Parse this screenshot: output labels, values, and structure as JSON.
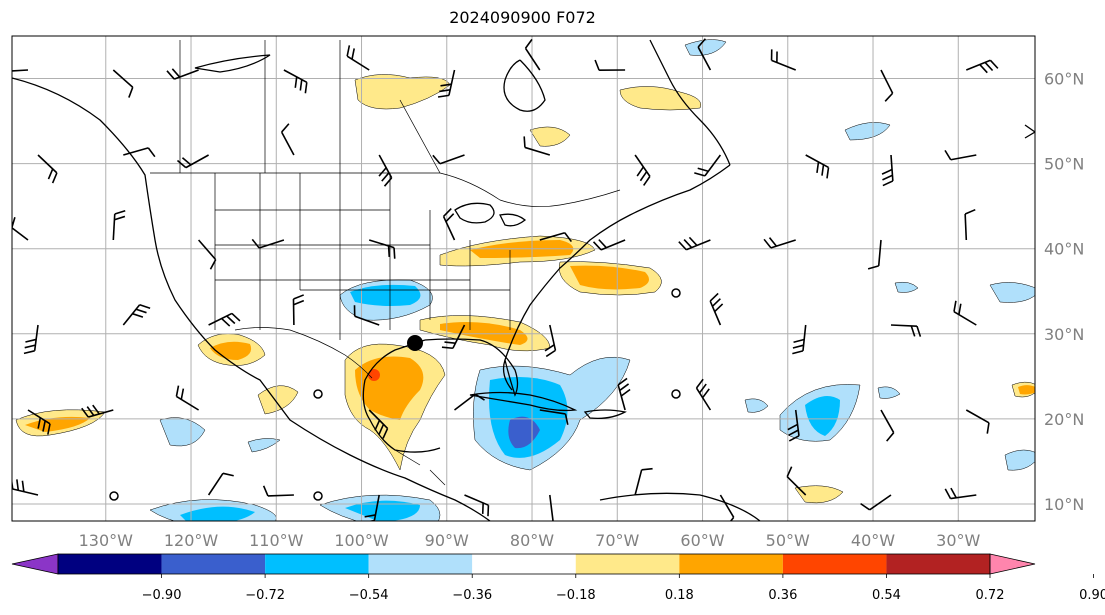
{
  "title": "2024090900 F072",
  "map": {
    "lon_labels": [
      "130°W",
      "120°W",
      "110°W",
      "100°W",
      "90°W",
      "80°W",
      "70°W",
      "60°W",
      "50°W",
      "40°W",
      "30°W"
    ],
    "lat_labels": [
      "60°N",
      "50°N",
      "40°N",
      "30°N",
      "20°N",
      "10°N"
    ],
    "lon_range": [
      -141,
      -21
    ],
    "lat_range": [
      8,
      65
    ],
    "grid": true,
    "features": [
      "coastlines",
      "country-borders",
      "state-borders",
      "wind-barbs",
      "filled-contours",
      "storm-marker"
    ]
  },
  "colorbar": {
    "ticks": [
      "−0.90",
      "−0.72",
      "−0.54",
      "−0.36",
      "−0.18",
      "0.18",
      "0.36",
      "0.54",
      "0.72",
      "0.90"
    ],
    "colors": [
      "#8b35c7",
      "#000080",
      "#3a5fcd",
      "#00bfff",
      "#b0e0fb",
      "#ffffff",
      "#ffe98a",
      "#ffa500",
      "#ff4500",
      "#b22222",
      "#ff85ad"
    ],
    "extend": "both"
  }
}
